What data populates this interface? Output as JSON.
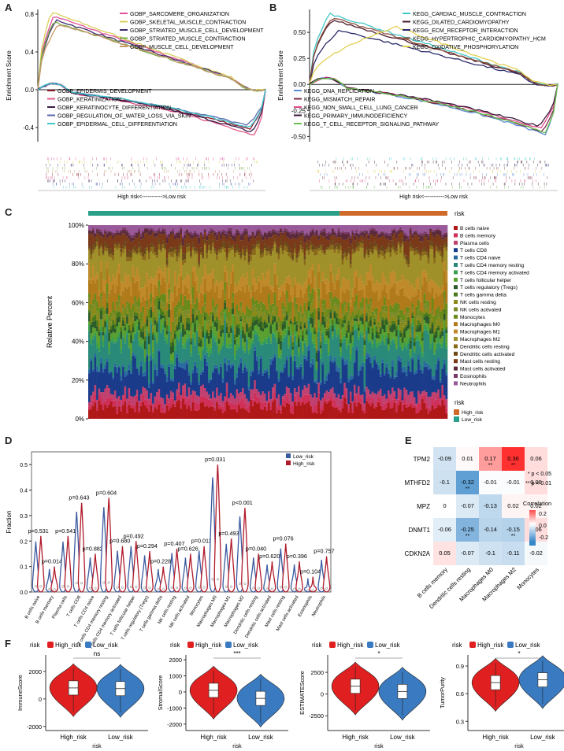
{
  "panel_letters": {
    "A": "A",
    "B": "B",
    "C": "C",
    "D": "D",
    "E": "E",
    "F": "F"
  },
  "chart_data": [
    {
      "id": "A",
      "type": "line",
      "ylabel": "Enrichment Score",
      "y_ticks": [
        "0.8",
        "0.4",
        "0.0",
        "-0.4"
      ],
      "ylim": [
        -0.55,
        0.85
      ],
      "xlabel": "High risk<----------->Low risk",
      "series": [
        {
          "name": "GOBP_SARCOMERE_ORGANIZATION",
          "color": "#e0509a",
          "group": "up",
          "peak": 0.78,
          "peakPos": 0.07
        },
        {
          "name": "GOBP_SKELETAL_MUSCLE_CONTRACTION",
          "color": "#d8d05a",
          "group": "up",
          "peak": 0.82,
          "peakPos": 0.06
        },
        {
          "name": "GOBP_STRIATED_MUSCLE_CELL_DEVELOPMENT",
          "color": "#3e2a6e",
          "group": "up",
          "peak": 0.74,
          "peakPos": 0.08
        },
        {
          "name": "GOBP_STRIATED_MUSCLE_CONTRACTION",
          "color": "#7aa84a",
          "group": "up",
          "peak": 0.72,
          "peakPos": 0.07
        },
        {
          "name": "GOBP_MUSCLE_CELL_DEVELOPMENT",
          "color": "#c89a6a",
          "group": "up",
          "peak": 0.7,
          "peakPos": 0.09
        },
        {
          "name": "GOBP_EPIDERMIS_DEVELOPMENT",
          "color": "#8a1a2a",
          "group": "down",
          "peak": -0.42,
          "peakPos": 0.93
        },
        {
          "name": "GOBP_KERATINIZATION",
          "color": "#e05a8a",
          "group": "down",
          "peak": -0.48,
          "peakPos": 0.95
        },
        {
          "name": "GOBP_KERATINOCYTE_DIFFERENTIATION",
          "color": "#3a1a4a",
          "group": "down",
          "peak": -0.45,
          "peakPos": 0.94
        },
        {
          "name": "GOBP_REGULATION_OF_WATER_LOSS_VIA_SKIN",
          "color": "#5a6ab0",
          "group": "down",
          "peak": -0.38,
          "peakPos": 0.92
        },
        {
          "name": "GOBP_EPIDERMAL_CELL_DIFFERENTIATION",
          "color": "#40c8c8",
          "group": "down",
          "peak": -0.4,
          "peakPos": 0.93
        }
      ]
    },
    {
      "id": "B",
      "type": "line",
      "ylabel": "Enrichment Score",
      "y_ticks": [
        "0.50",
        "0.25",
        "0.00",
        "-0.25",
        "-0.50"
      ],
      "ylim": [
        -0.55,
        0.72
      ],
      "xlabel": "High risk<----------->Low risk",
      "series": [
        {
          "name": "KEGG_CARDIAC_MUSCLE_CONTRACTION",
          "color": "#40c8c8",
          "group": "up",
          "peak": 0.68,
          "peakPos": 0.08
        },
        {
          "name": "KEGG_DILATED_CARDIOMYOPATHY",
          "color": "#4a1a2a",
          "group": "up",
          "peak": 0.62,
          "peakPos": 0.09
        },
        {
          "name": "KEGG_ECM_RECEPTOR_INTERACTION",
          "color": "#2a2a6a",
          "group": "up",
          "peak": 0.52,
          "peakPos": 0.12
        },
        {
          "name": "KEGG_HYPERTROPHIC_CARDIOMYOPATHY_HCM",
          "color": "#8a4a3a",
          "group": "up",
          "peak": 0.64,
          "peakPos": 0.09
        },
        {
          "name": "KEGG_OXIDATIVE_PHOSPHORYLATION",
          "color": "#e0d050",
          "group": "up",
          "peak": 0.55,
          "peakPos": 0.35
        },
        {
          "name": "KEGG_DNA_REPLICATION",
          "color": "#5a8ad0",
          "group": "down",
          "peak": -0.48,
          "peakPos": 0.95
        },
        {
          "name": "KEGG_MISMATCH_REPAIR",
          "color": "#7a2a4a",
          "group": "down",
          "peak": -0.45,
          "peakPos": 0.94
        },
        {
          "name": "KEGG_NON_SMALL_CELL_LUNG_CANCER",
          "color": "#e04a8a",
          "group": "down",
          "peak": -0.42,
          "peakPos": 0.93
        },
        {
          "name": "KEGG_PRIMARY_IMMUNODEFICIENCY",
          "color": "#3a1a3a",
          "group": "down",
          "peak": -0.4,
          "peakPos": 0.92
        },
        {
          "name": "KEGG_T_CELL_RECEPTOR_SIGNALING_PATHWAY",
          "color": "#6ac050",
          "group": "down",
          "peak": -0.46,
          "peakPos": 0.95
        }
      ]
    },
    {
      "id": "C",
      "type": "bar",
      "ylabel": "Relative Percent",
      "y_ticks": [
        "0%",
        "20%",
        "40%",
        "60%",
        "80%",
        "100%"
      ],
      "risk_label": "risk",
      "risk_groups": [
        {
          "name": "High_risk",
          "color": "#d06a2a",
          "fraction": 0.3
        },
        {
          "name": "Low_risk",
          "color": "#2aa08a",
          "fraction": 0.7
        }
      ],
      "cell_types": [
        "B cells naive",
        "B cells memory",
        "Plasma cells",
        "T cells CD8",
        "T cells CD4 naive",
        "T cells CD4 memory resting",
        "T cells CD4 memory activated",
        "T cells follicular helper",
        "T cells regulatory (Tregs)",
        "T cells gamma delta",
        "NK cells resting",
        "NK cells activated",
        "Monocytes",
        "Macrophages M0",
        "Macrophages M1",
        "Macrophages M2",
        "Dendritic cells resting",
        "Dendritic cells activated",
        "Mast cells resting",
        "Mast cells activated",
        "Eosinophils",
        "Neutrophils"
      ],
      "colors": [
        "#b01818",
        "#d03058",
        "#c04070",
        "#1a3a8a",
        "#2a6aa0",
        "#2a8a7a",
        "#3aa050",
        "#5aa030",
        "#2a5a2a",
        "#4a7a1a",
        "#8a8a1a",
        "#7a8a2a",
        "#6a8a1a",
        "#b07a1a",
        "#c08a2a",
        "#a0902a",
        "#8a6a1a",
        "#6a4a1a",
        "#7a3a1a",
        "#5a2a3a",
        "#7a3a6a",
        "#9a5a9a"
      ],
      "mean_fractions": [
        0.06,
        0.03,
        0.04,
        0.12,
        0.02,
        0.12,
        0.02,
        0.04,
        0.03,
        0.02,
        0.03,
        0.02,
        0.04,
        0.08,
        0.06,
        0.12,
        0.02,
        0.02,
        0.05,
        0.02,
        0.01,
        0.03
      ]
    },
    {
      "id": "D",
      "type": "violin",
      "ylabel": "Fraction",
      "y_ticks": [
        "0.0",
        "0.1",
        "0.2",
        "0.3",
        "0.4",
        "0.5"
      ],
      "ylim": [
        0,
        0.55
      ],
      "legend": [
        {
          "name": "Low_risk",
          "color": "#3a5aa0"
        },
        {
          "name": "High_risk",
          "color": "#b01a2a"
        }
      ],
      "categories": [
        "B cells naive",
        "B cells memory",
        "Plasma cells",
        "T cells CD8",
        "T cells CD4 naive",
        "T cells CD4 memory resting",
        "T cells CD4 memory activated",
        "T cells follicular helper",
        "T cells regulatory (Tregs)",
        "T cells gamma delta",
        "NK cells resting",
        "NK cells activated",
        "Monocytes",
        "Macrophages M0",
        "Macrophages M1",
        "Macrophages M2",
        "Dendritic cells resting",
        "Dendritic cells activated",
        "Mast cells resting",
        "Mast cells activated",
        "Eosinophils",
        "Neutrophils"
      ],
      "pvalues": [
        "p=0.531",
        "p=0.014",
        "p=0.541",
        "p=0.643",
        "p=0.882",
        "p=0.604",
        "p=0.680",
        "p=0.492",
        "p=0.294",
        "p=0.228",
        "p=0.407",
        "p=0.626",
        "p=0.013",
        "p=0.031",
        "p=0.493",
        "p<0.001",
        "p=0.040",
        "p=0.620",
        "p=0.076",
        "p=0.396",
        "p=0.104",
        "p=0.757"
      ],
      "max_values": [
        0.22,
        0.1,
        0.22,
        0.35,
        0.15,
        0.37,
        0.18,
        0.2,
        0.16,
        0.1,
        0.17,
        0.15,
        0.18,
        0.5,
        0.21,
        0.33,
        0.15,
        0.12,
        0.19,
        0.12,
        0.06,
        0.14
      ]
    },
    {
      "id": "E",
      "type": "heatmap",
      "rows": [
        "TPM2",
        "MTHFD2",
        "MPZ",
        "DNMT1",
        "CDKN2A"
      ],
      "cols": [
        "B cells memory",
        "Dendritic cells resting",
        "Macrophages M0",
        "Macrophages M2",
        "Monocytes"
      ],
      "values": [
        [
          -0.09,
          0.01,
          0.17,
          0.36,
          0.06
        ],
        [
          -0.1,
          -0.32,
          -0.01,
          -0.01,
          0.06
        ],
        [
          0,
          -0.07,
          -0.13,
          0.02,
          0.02
        ],
        [
          -0.06,
          -0.25,
          -0.14,
          -0.15,
          0.06
        ],
        [
          0.05,
          -0.07,
          -0.1,
          -0.11,
          -0.02
        ]
      ],
      "labels": [
        [
          "-0.09",
          "0.01",
          "0.17",
          "0.36",
          "0.06"
        ],
        [
          "-0.1",
          "-0.32",
          "-0.01",
          "-0.01",
          "0.06"
        ],
        [
          "0",
          "-0.07",
          "-0.13",
          "0.02",
          "0.02"
        ],
        [
          "-0.06",
          "-0.25",
          "-0.14",
          "-0.15",
          "0.06"
        ],
        [
          "0.05",
          "-0.07",
          "-0.1",
          "-0.11",
          "-0.02"
        ]
      ],
      "stars": [
        [
          "",
          "",
          "**",
          "**",
          ""
        ],
        [
          "",
          "**",
          "",
          "",
          ""
        ],
        [
          "",
          "",
          "",
          "",
          ""
        ],
        [
          "",
          "**",
          "",
          "**",
          ""
        ],
        [
          "",
          "",
          "",
          "",
          ""
        ]
      ],
      "sig_legend": [
        "* p < 0.05",
        "** p < 0.01"
      ],
      "colorbar_title": "Correlation",
      "colorbar_ticks": [
        "0.2",
        "0.0",
        "-0.2"
      ]
    },
    {
      "id": "F",
      "type": "violin",
      "legend_title": "risk",
      "groups": [
        {
          "name": "High_risk",
          "color": "#e02020"
        },
        {
          "name": "Low_risk",
          "color": "#3a7ac0"
        }
      ],
      "xlabel": "risk",
      "plots": [
        {
          "ylabel": "ImmuneScore",
          "sig": "ns",
          "y_ticks": [
            "2000",
            "0",
            "-2000"
          ],
          "ylim": [
            -2300,
            3200
          ],
          "medians": [
            800,
            750
          ]
        },
        {
          "ylabel": "StromalScore",
          "sig": "***",
          "y_ticks": [
            "2000",
            "1000",
            "0",
            "-1000",
            "-2000"
          ],
          "ylim": [
            -2400,
            2300
          ],
          "medians": [
            100,
            -400
          ]
        },
        {
          "ylabel": "ESTIMATEScore",
          "sig": "*",
          "y_ticks": [
            "2500",
            "0",
            "-2500"
          ],
          "ylim": [
            -4200,
            4500
          ],
          "medians": [
            900,
            300
          ]
        },
        {
          "ylabel": "TumorPurity",
          "sig": "*",
          "y_ticks": [
            "0.9",
            "0.6",
            "0.3"
          ],
          "ylim": [
            0.2,
            1.02
          ],
          "medians": [
            0.72,
            0.75
          ]
        }
      ]
    }
  ]
}
